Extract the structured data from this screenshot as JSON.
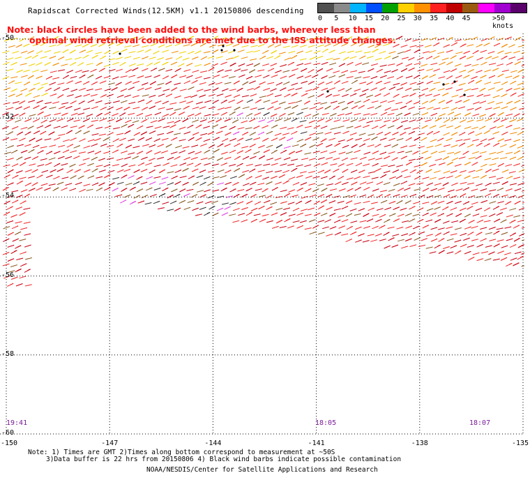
{
  "title": "Rapidscat Corrected Winds(12.5KM) v1.1 20150806 descending",
  "note": {
    "line1": "Note: black circles have been added to the wind barbs, wherever less than",
    "line2": "optimal wind retrieval conditions are met due to the ISS attitude changes."
  },
  "legend": {
    "unit": ">50 knots",
    "labels": [
      "0",
      "5",
      "10",
      "15",
      "20",
      "25",
      "30",
      "35",
      "40",
      "45"
    ],
    "colors": [
      "#505050",
      "#8a8a8a",
      "#00b4ff",
      "#0050ff",
      "#00a000",
      "#ffd000",
      "#ff9000",
      "#ff2020",
      "#c00000",
      "#9a5a10",
      "#ff00ff",
      "#a000d0",
      "#5a006a"
    ]
  },
  "axes": {
    "lat_labels": [
      "-50",
      "-52",
      "-54",
      "-56",
      "-58",
      "-60"
    ],
    "lon_labels": [
      "-150",
      "-147",
      "-144",
      "-141",
      "-138",
      "-135"
    ],
    "lat_range": [
      -60,
      -50
    ],
    "lon_range": [
      -150,
      -135
    ]
  },
  "times": [
    {
      "label": "19:41"
    },
    {
      "label": "18:05"
    },
    {
      "label": "18:07"
    }
  ],
  "footer": {
    "line1": "Note: 1) Times are GMT 2)Times along bottom correspond to measurement at ~50S",
    "line2": "3)Data buffer is 22 hrs from 20150806 4) Black wind barbs indicate possible contamination",
    "credit": "NOAA/NESDIS/Center for Satellite Applications and Research"
  },
  "wind_field": {
    "dominant_speed_knots": "30-40",
    "direction_from": "west-southwest",
    "contamination_markers": "black circles"
  }
}
